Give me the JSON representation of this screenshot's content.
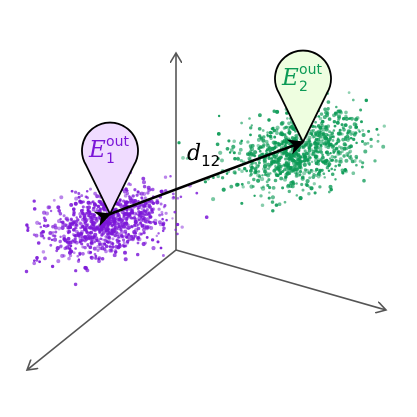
{
  "diagram": {
    "distance_label": {
      "symbol": "d",
      "subscript": "12"
    },
    "clusters": [
      {
        "id": "cluster-1",
        "label": {
          "symbol": "E",
          "subscript": "1",
          "superscript": "out"
        },
        "color": "#7b16d8",
        "marker_fill": "#f0dcff",
        "point_count": 900
      },
      {
        "id": "cluster-2",
        "label": {
          "symbol": "E",
          "subscript": "2",
          "superscript": "out"
        },
        "color": "#0b9a55",
        "marker_fill": "#eefee0",
        "point_count": 900
      }
    ],
    "axes_color": "#555555",
    "arrow_color": "#000000"
  }
}
